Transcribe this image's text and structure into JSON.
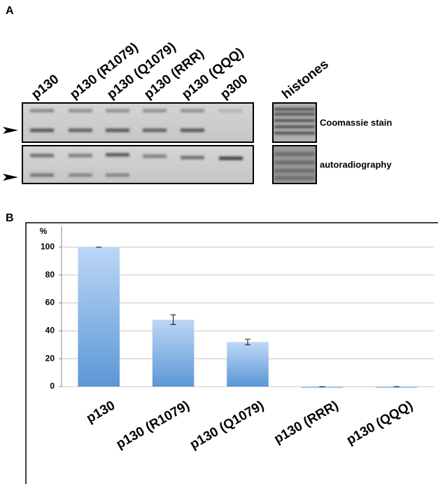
{
  "panel_a": {
    "label": "A",
    "lanes": [
      "p130",
      "p130 (R1079)",
      "p130 (Q1079)",
      "p130 (RRR)",
      "p130 (QQQ)",
      "p300"
    ],
    "side_lane": "histones",
    "rows": [
      "Coomassie stain",
      "autoradiography"
    ]
  },
  "chart_data": {
    "type": "bar",
    "panel_label": "B",
    "y_label": "%",
    "categories": [
      "p130",
      "p130 (R1079)",
      "p130 (Q1079)",
      "p130 (RRR)",
      "p130 (QQQ)"
    ],
    "values": [
      100,
      48,
      32,
      0,
      0
    ],
    "errors": [
      0,
      3.5,
      2,
      0,
      0
    ],
    "color": "#6fa8e0",
    "ylim": [
      0,
      110
    ],
    "yticks": [
      0,
      20,
      40,
      60,
      80,
      100
    ],
    "grid": true
  }
}
